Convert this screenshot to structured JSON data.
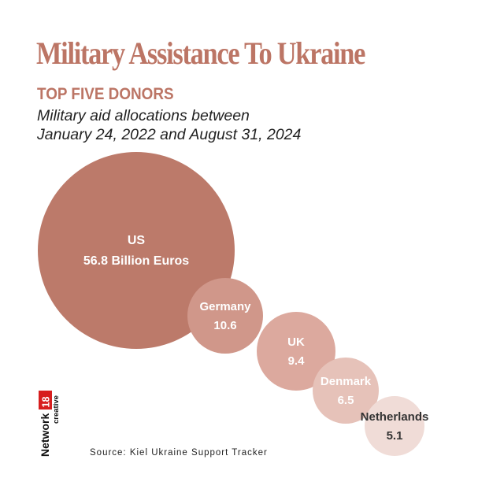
{
  "title": "Military Assistance To Ukraine",
  "subtitle": "TOP FIVE DONORS",
  "description": {
    "line1": "Military aid allocations between",
    "line2": "January 24, 2022 and August 31, 2024"
  },
  "source": "Source: Kiel Ukraine Support Tracker",
  "logo": {
    "brand": "Network",
    "number": "18",
    "tag": "creative"
  },
  "colors": {
    "title": "#bc7565",
    "bubbles": [
      "#bc7a6a",
      "#d0978a",
      "#dca99e",
      "#e6c2b9",
      "#f0dcd7"
    ]
  },
  "chart_data": {
    "type": "bubble",
    "unit": "Billion Euros",
    "categories": [
      "US",
      "Germany",
      "UK",
      "Denmark",
      "Netherlands"
    ],
    "values": [
      56.8,
      10.6,
      9.4,
      6.5,
      5.1
    ],
    "labels": [
      "56.8 Billion Euros",
      "10.6",
      "9.4",
      "6.5",
      "5.1"
    ]
  }
}
